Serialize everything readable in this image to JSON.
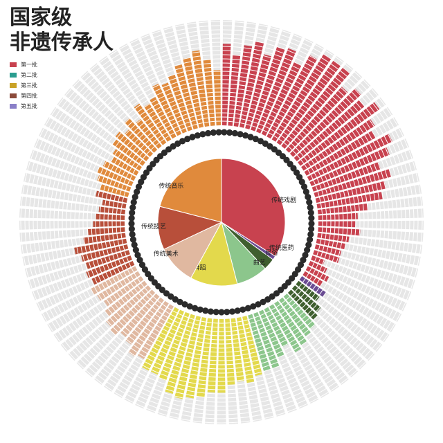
{
  "title_lines": [
    "国家级",
    "非遗传承人"
  ],
  "legend": [
    {
      "label": "第一批",
      "color": "#c8424f"
    },
    {
      "label": "第二批",
      "color": "#2a9d8f"
    },
    {
      "label": "第三批",
      "color": "#c9a227"
    },
    {
      "label": "第四批",
      "color": "#8b4a3a"
    },
    {
      "label": "第五批",
      "color": "#8a7fc8"
    }
  ],
  "chart_data": {
    "type": "pie",
    "categories": [
      "传统戏剧",
      "传统医药",
      "民俗",
      "曲艺",
      "传统舞蹈",
      "传统美术",
      "传统技艺",
      "传统音乐"
    ],
    "values": [
      34,
      1,
      3,
      8,
      12,
      10,
      11,
      21
    ],
    "colors": [
      "#c8424f",
      "#6a4c93",
      "#3f5f2f",
      "#8cc68c",
      "#e3d94c",
      "#e0b8a0",
      "#b84f3a",
      "#e08a3c"
    ],
    "outer_ring": {
      "type": "radial-bar",
      "bar_values": [
        31,
        27,
        31,
        33,
        29,
        33,
        34,
        30,
        35,
        38,
        38,
        38,
        32,
        35,
        33,
        37,
        32,
        30,
        35,
        32,
        27,
        30,
        27,
        25,
        19,
        15,
        14,
        16,
        12,
        11,
        10,
        10,
        5,
        7,
        9,
        8,
        11,
        10,
        13,
        14,
        16,
        17,
        19,
        20,
        16,
        19,
        22,
        22,
        23,
        25,
        24,
        25,
        28,
        28,
        30,
        31,
        32,
        31,
        27,
        26,
        26,
        23,
        24,
        21,
        20,
        22,
        21,
        19,
        17,
        18,
        19,
        17,
        18,
        17,
        18,
        20,
        16,
        14,
        12,
        11,
        10,
        9,
        12,
        11,
        13,
        14,
        13,
        11,
        12,
        14,
        15,
        13,
        16,
        13,
        18,
        16,
        17,
        21,
        20,
        22,
        25,
        27,
        29,
        25,
        21
      ]
    }
  }
}
